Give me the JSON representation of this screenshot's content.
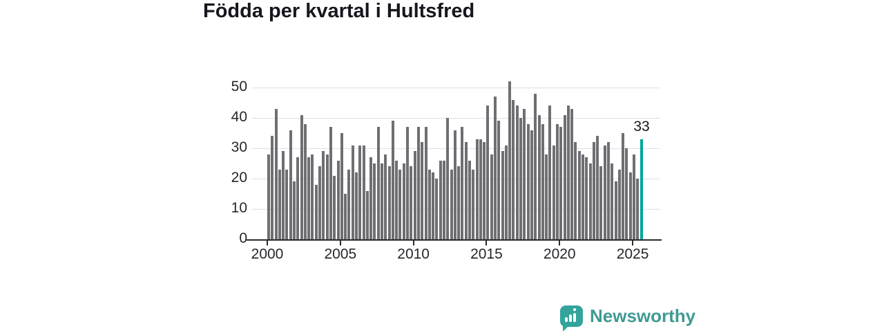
{
  "title": "Födda per kvartal i Hultsfred",
  "logo": {
    "text": "Newsworthy",
    "icon": "newsworthy-bars-icon"
  },
  "chart_data": {
    "type": "bar",
    "title": "Födda per kvartal i Hultsfred",
    "frequency": "quarterly",
    "x_start_year": 2000,
    "x_start_quarter": 1,
    "x_end_year": 2025,
    "x_end_quarter": 3,
    "values": [
      28,
      34,
      43,
      23,
      29,
      23,
      36,
      19,
      27,
      41,
      38,
      27,
      28,
      18,
      24,
      29,
      28,
      37,
      21,
      26,
      35,
      15,
      23,
      31,
      22,
      31,
      31,
      16,
      27,
      25,
      37,
      25,
      28,
      24,
      39,
      26,
      23,
      25,
      37,
      24,
      29,
      37,
      32,
      37,
      23,
      22,
      20,
      26,
      26,
      40,
      23,
      36,
      24,
      37,
      32,
      26,
      23,
      33,
      33,
      32,
      44,
      28,
      47,
      39,
      29,
      31,
      52,
      46,
      44,
      40,
      43,
      38,
      36,
      48,
      41,
      38,
      28,
      44,
      31,
      38,
      37,
      41,
      44,
      43,
      32,
      29,
      28,
      27,
      25,
      32,
      34,
      24,
      31,
      32,
      25,
      19,
      23,
      35,
      30,
      22,
      28,
      20,
      33
    ],
    "ylim": [
      0,
      50
    ],
    "yticks": [
      0,
      10,
      20,
      30,
      40,
      50
    ],
    "xticks": [
      2000,
      2005,
      2010,
      2015,
      2020,
      2025
    ],
    "grid": true,
    "legend": "none",
    "bar_color": "#6f6e73",
    "highlight_last": true,
    "highlight_color": "#00a69b",
    "last_value_label": "33"
  }
}
